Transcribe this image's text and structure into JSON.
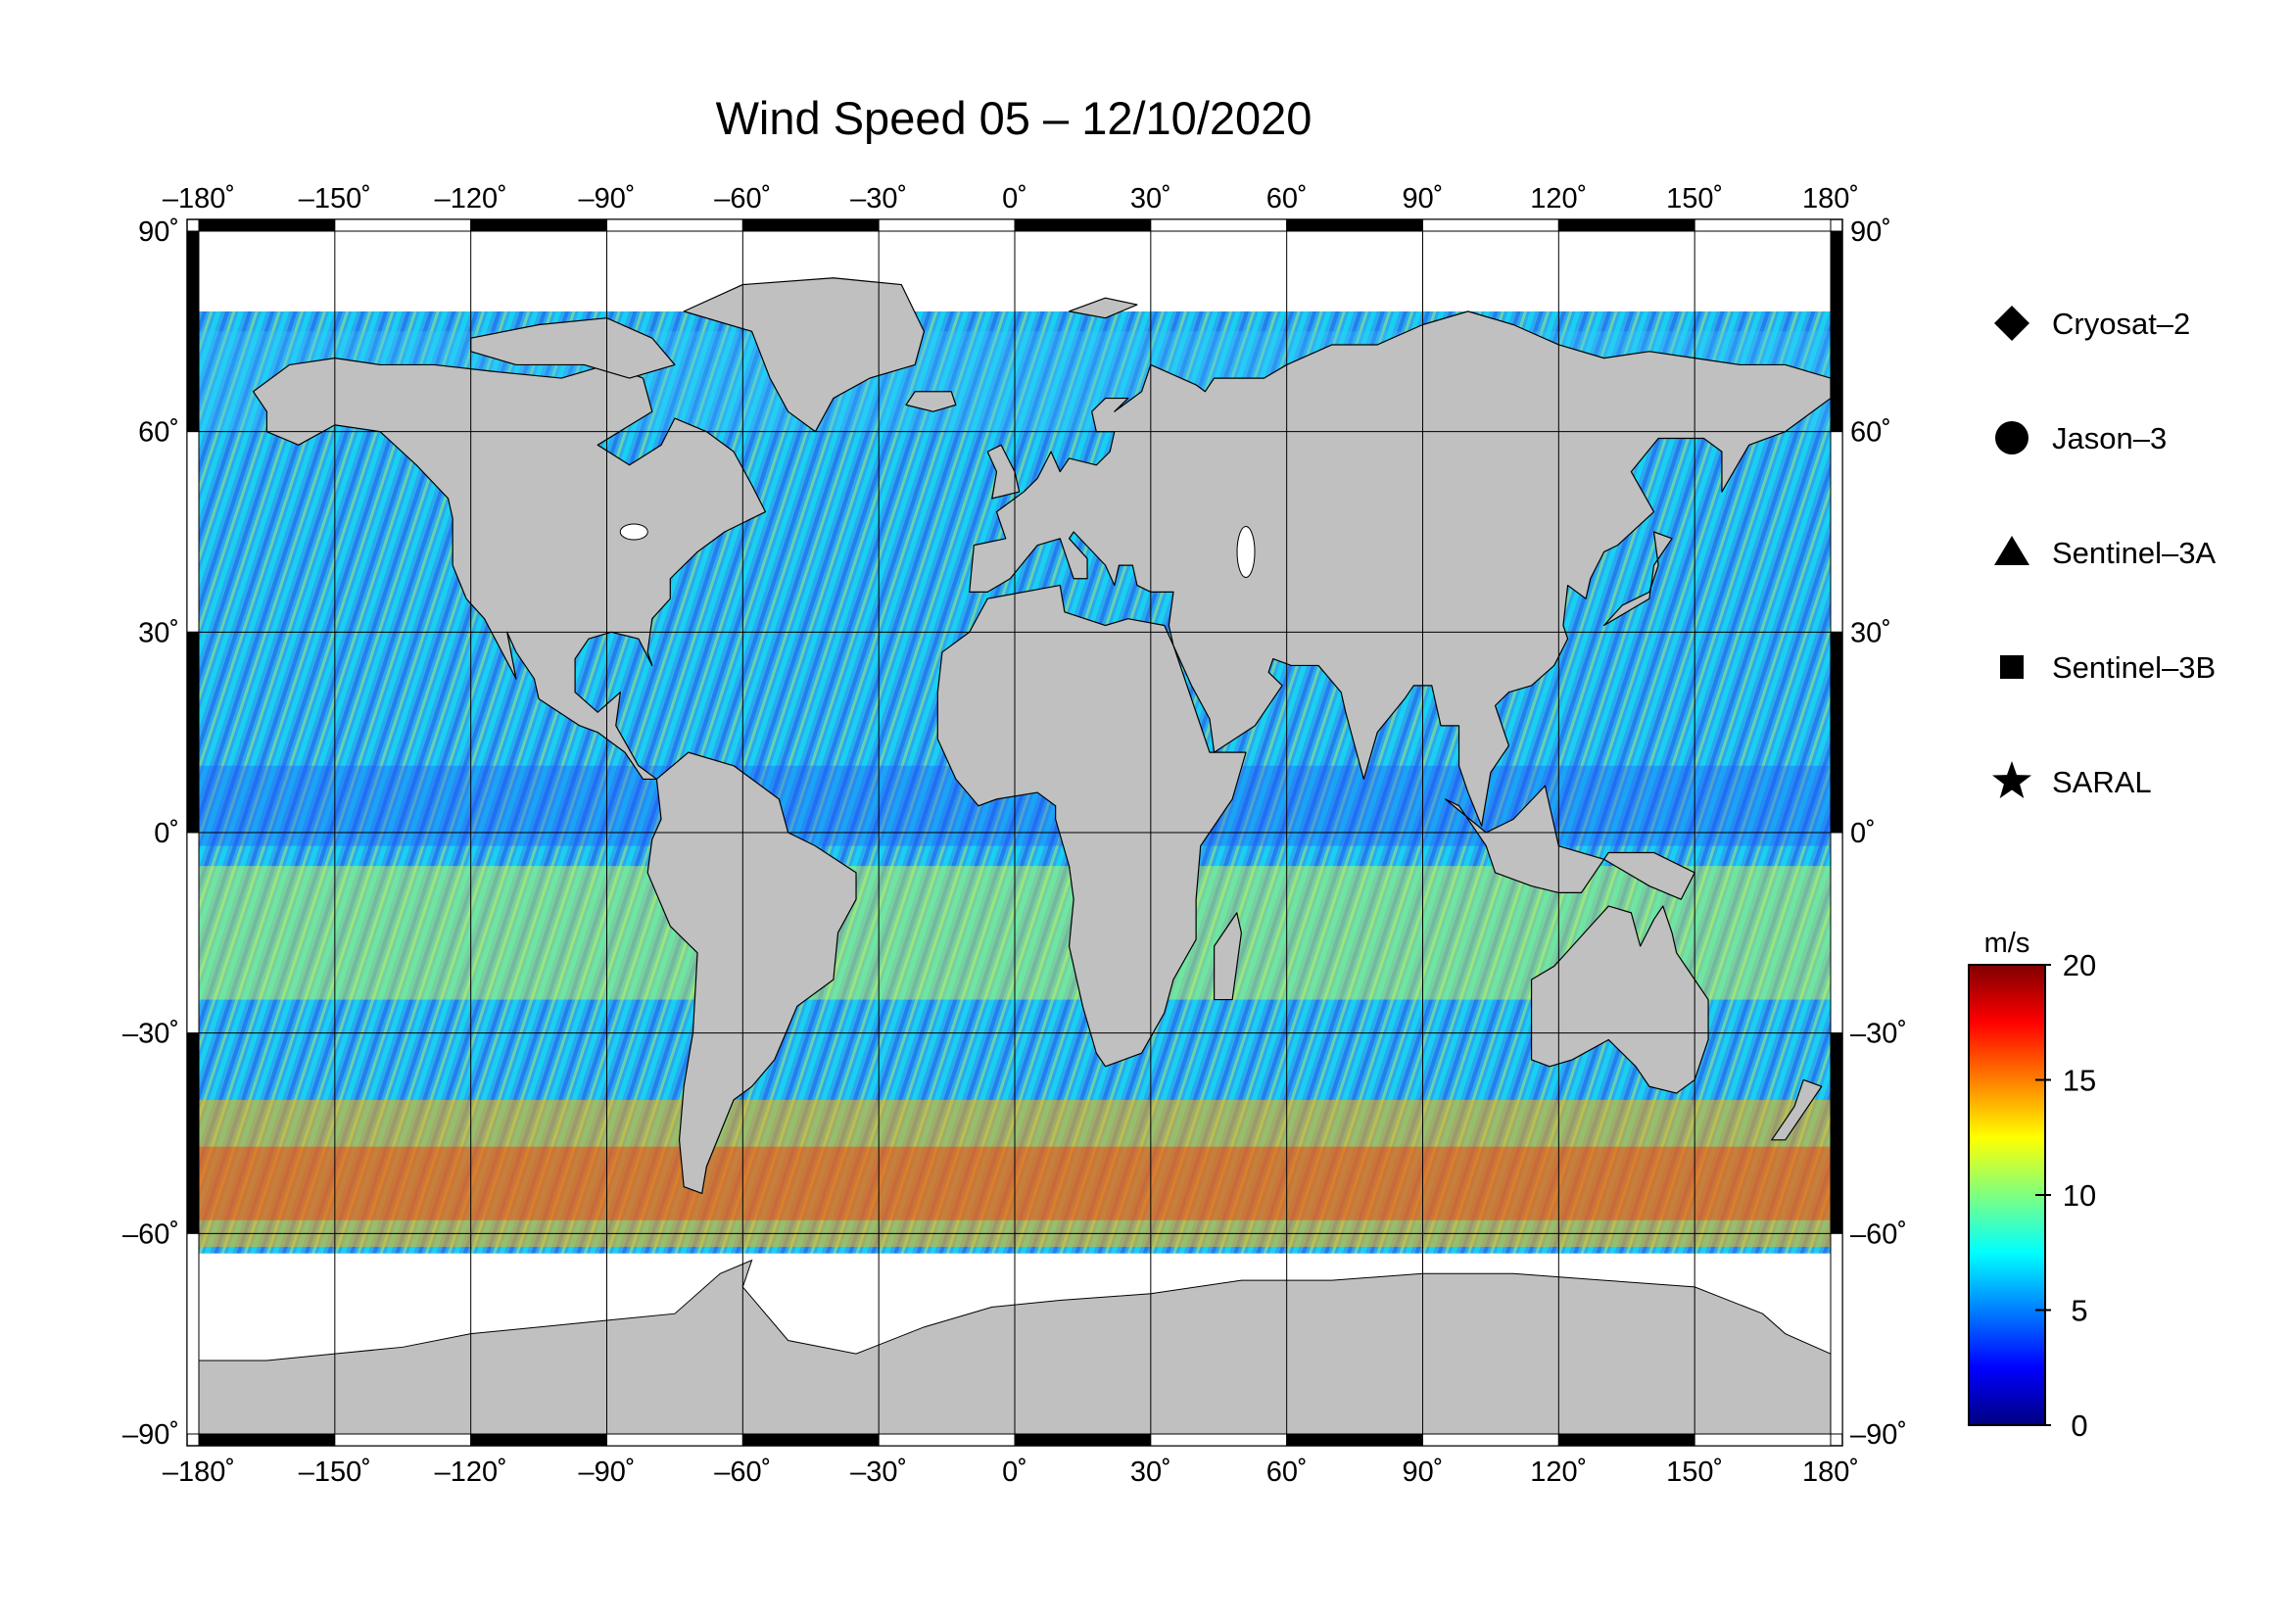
{
  "title": "Wind Speed 05 – 12/10/2020",
  "map": {
    "lon_ticks": [
      "–180˚",
      "–150˚",
      "–120˚",
      "–90˚",
      "–60˚",
      "–30˚",
      "0˚",
      "30˚",
      "60˚",
      "90˚",
      "120˚",
      "150˚",
      "180˚"
    ],
    "lat_ticks": [
      "90˚",
      "60˚",
      "30˚",
      "0˚",
      "–30˚",
      "–60˚",
      "–90˚"
    ],
    "lon_range": [
      -180,
      180
    ],
    "lat_range": [
      -90,
      90
    ],
    "grid_step_lon": 30,
    "grid_step_lat": 30,
    "land_color": "#c0c0c0",
    "ice_color": "#ffffff",
    "grid": true
  },
  "legend": {
    "items": [
      {
        "label": "Cryosat–2",
        "symbol": "diamond"
      },
      {
        "label": "Jason–3",
        "symbol": "circle"
      },
      {
        "label": "Sentinel–3A",
        "symbol": "triangle"
      },
      {
        "label": "Sentinel–3B",
        "symbol": "square"
      },
      {
        "label": "SARAL",
        "symbol": "star"
      }
    ]
  },
  "colorbar": {
    "unit": "m/s",
    "min": 0,
    "max": 20,
    "ticks": [
      "20",
      "15",
      "10",
      "5",
      "0"
    ],
    "colormap": "jet",
    "colors": [
      "#00007f",
      "#0000ff",
      "#007fff",
      "#00ffff",
      "#7fff7f",
      "#ffff00",
      "#ff7f00",
      "#ff0000",
      "#7f0000"
    ]
  }
}
